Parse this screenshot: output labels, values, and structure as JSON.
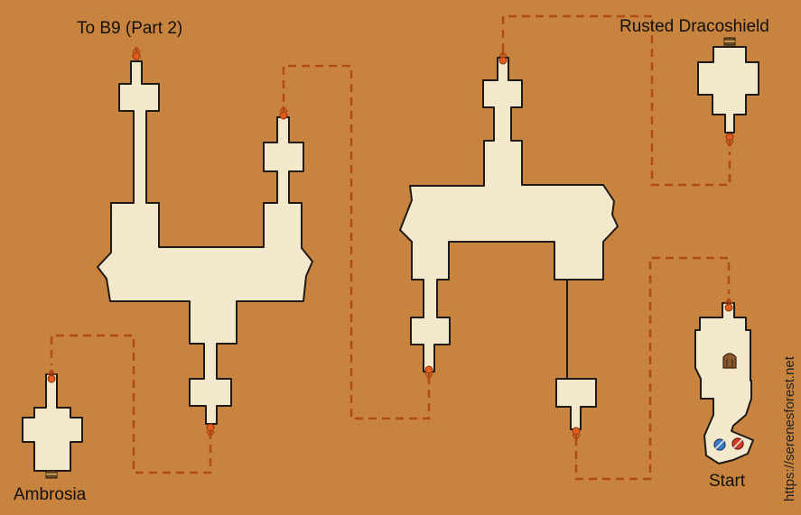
{
  "map": {
    "labels": {
      "to_b9": "To B9 (Part 2)",
      "rusted_dracoshield": "Rusted Dracoshield",
      "ambrosia": "Ambrosia",
      "start": "Start"
    },
    "credit": "https://serenesforest.net"
  },
  "colors": {
    "background": "#c8843e",
    "floor": "#f3e7cc",
    "wall": "#1e1a15",
    "path": "#b24a16",
    "marker": "#e25a1c"
  },
  "icons": [
    "chest-icon",
    "door-icon",
    "stairs-up-icon",
    "stairs-down-icon",
    "blue-unit-icon",
    "red-unit-icon"
  ]
}
